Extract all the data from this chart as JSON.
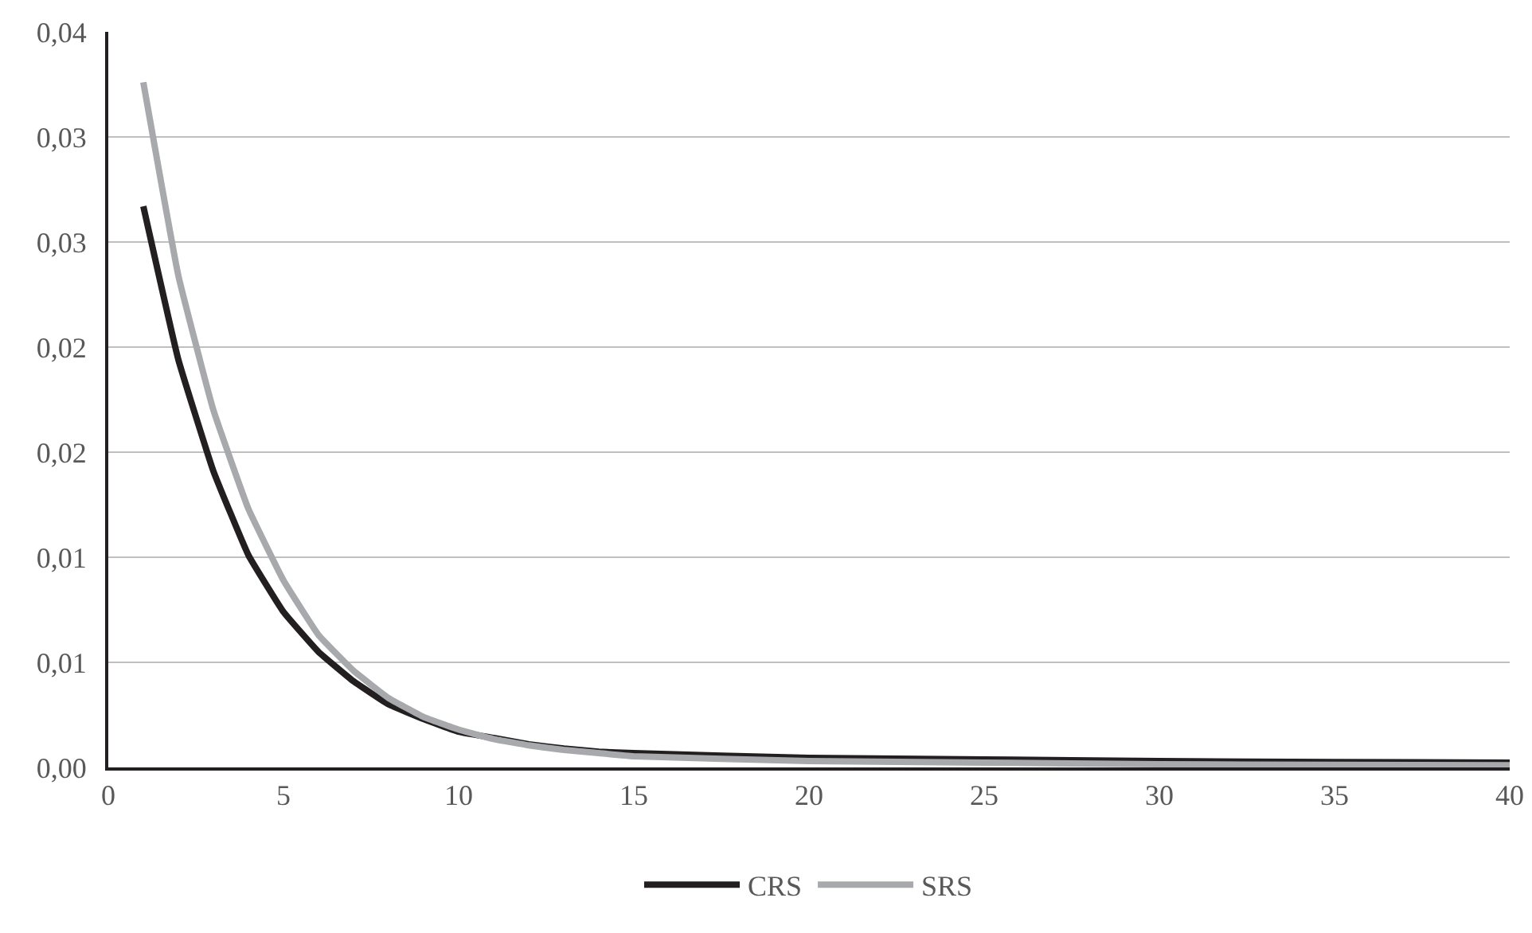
{
  "chart_data": {
    "type": "line",
    "x": [
      1,
      2,
      3,
      4,
      5,
      6,
      7,
      8,
      9,
      10,
      11,
      12,
      13,
      14,
      15,
      20,
      25,
      30,
      35,
      40
    ],
    "series": [
      {
        "name": "CRS",
        "color": "#231f20",
        "values": [
          0.0267,
          0.0194,
          0.0141,
          0.0101,
          0.0074,
          0.0055,
          0.0041,
          0.003,
          0.0023,
          0.0017,
          0.0014,
          0.0011,
          0.0009,
          0.00075,
          0.00068,
          0.00045,
          0.00038,
          0.0003,
          0.00026,
          0.00023
        ]
      },
      {
        "name": "SRS",
        "color": "#a7a9ac",
        "values": [
          0.0326,
          0.0234,
          0.017,
          0.0123,
          0.0089,
          0.0063,
          0.0046,
          0.0033,
          0.0024,
          0.0018,
          0.00135,
          0.00105,
          0.00083,
          0.00068,
          0.00053,
          0.0003,
          0.00023,
          0.00015,
          0.00012,
          0.0001
        ]
      }
    ],
    "xlim": [
      0,
      40
    ],
    "xticks": [
      0,
      5,
      10,
      15,
      20,
      25,
      30,
      35,
      40
    ],
    "ylim": [
      0,
      0.035
    ],
    "yticks": [
      {
        "value": 0,
        "label": "0,00"
      },
      {
        "value": 0.005,
        "label": "0,01"
      },
      {
        "value": 0.01,
        "label": "0,01"
      },
      {
        "value": 0.015,
        "label": "0,02"
      },
      {
        "value": 0.02,
        "label": "0,02"
      },
      {
        "value": 0.025,
        "label": "0,03"
      },
      {
        "value": 0.03,
        "label": "0,03"
      },
      {
        "value": 0.035,
        "label": "0,04"
      }
    ],
    "grid": "y",
    "legend": "bottom",
    "marker": "none",
    "line_style": "solid"
  }
}
